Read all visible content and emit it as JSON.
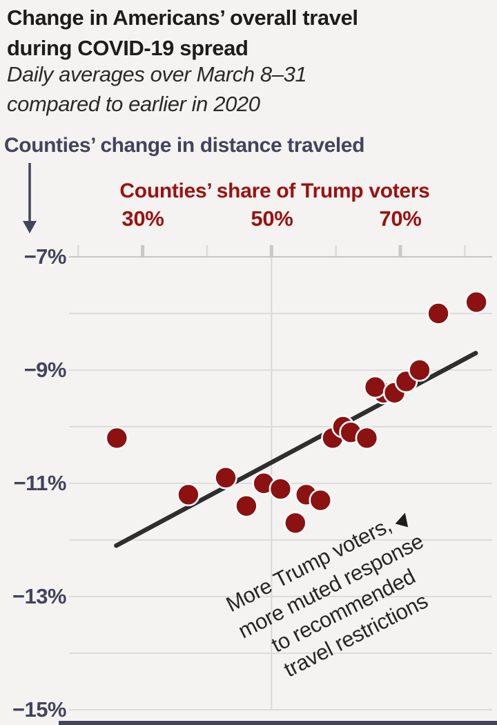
{
  "header": {
    "title_line1": "Change in Americans’ overall travel",
    "title_line2": "during COVID-19 spread",
    "subtitle_line1": "Daily averages over March 8–31",
    "subtitle_line2": "compared to earlier in 2020"
  },
  "chart_data": {
    "type": "scatter",
    "title": "Change in Americans’ overall travel during COVID-19 spread",
    "subtitle": "Daily averages over March 8–31 compared to earlier in 2020",
    "y_axis_title": "Counties’ change in distance traveled",
    "x_axis_title": "Counties’ share of Trump voters",
    "x_tick_labels": [
      "30%",
      "50%",
      "70%"
    ],
    "x_labeled_ticks_pct": [
      30,
      50,
      70
    ],
    "x_ticks_pct": [
      20,
      30,
      40,
      50,
      60,
      70,
      80
    ],
    "y_tick_labels": [
      "−7%",
      "−9%",
      "−11%",
      "−13%",
      "−15%"
    ],
    "y_label_values": [
      -7,
      -9,
      -11,
      -13,
      -15
    ],
    "y_gridline_values": [
      -8,
      -9,
      -10,
      -11,
      -12,
      -13,
      -14,
      -15
    ],
    "x_gridline_pct": [
      50
    ],
    "xlim": [
      18.6,
      84.3
    ],
    "ylim": [
      -15,
      -7
    ],
    "grid": true,
    "points": [
      {
        "x": 26.0,
        "y": -10.2
      },
      {
        "x": 37.1,
        "y": -11.2
      },
      {
        "x": 42.9,
        "y": -10.9
      },
      {
        "x": 46.1,
        "y": -11.4
      },
      {
        "x": 48.8,
        "y": -11.0
      },
      {
        "x": 51.4,
        "y": -11.1
      },
      {
        "x": 53.7,
        "y": -11.7
      },
      {
        "x": 55.4,
        "y": -11.2
      },
      {
        "x": 57.6,
        "y": -11.3
      },
      {
        "x": 59.5,
        "y": -10.2
      },
      {
        "x": 61.1,
        "y": -10.0
      },
      {
        "x": 62.3,
        "y": -10.1
      },
      {
        "x": 64.8,
        "y": -10.2
      },
      {
        "x": 67.4,
        "y": -9.4
      },
      {
        "x": 66.1,
        "y": -9.3
      },
      {
        "x": 69.1,
        "y": -9.4
      },
      {
        "x": 70.9,
        "y": -9.2
      },
      {
        "x": 73.0,
        "y": -9.0
      },
      {
        "x": 75.9,
        "y": -8.0
      },
      {
        "x": 81.8,
        "y": -7.8
      }
    ],
    "trend_line": {
      "x1": 25.9,
      "y1": -12.1,
      "x2": 81.7,
      "y2": -8.7
    },
    "annotation": {
      "lines": [
        "More Trump voters,",
        "more muted response",
        "to recommended",
        "travel restrictions"
      ],
      "arrow": "▶"
    },
    "colors": {
      "dot": "#8c1111",
      "dot_stroke": "#ffffff",
      "axis_red": "#9b1110",
      "navy": "#43435c",
      "trend": "#2e2e2e",
      "grid": "#d9d8d6",
      "axis_line": "#c6c5c3",
      "tick_major": "#c9c8c6",
      "tick_minor": "#dddcda",
      "background": "#f4f3f1"
    }
  }
}
